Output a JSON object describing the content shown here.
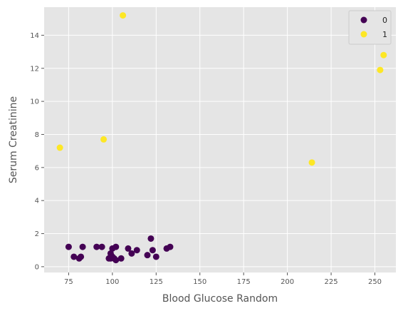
{
  "chart_data": {
    "type": "scatter",
    "title": "",
    "xlabel": "Blood Glucose Random",
    "ylabel": "Serum Creatinine",
    "xlim": [
      61,
      262
    ],
    "ylim": [
      -0.35,
      15.7
    ],
    "xticks": [
      75,
      100,
      125,
      150,
      175,
      200,
      225,
      250
    ],
    "yticks": [
      0,
      2,
      4,
      6,
      8,
      10,
      12,
      14
    ],
    "grid": true,
    "legend_position": "top-right",
    "series": [
      {
        "name": "0",
        "color": "#440154",
        "points": [
          [
            75,
            1.2
          ],
          [
            78,
            0.6
          ],
          [
            81,
            0.5
          ],
          [
            82,
            0.6
          ],
          [
            83,
            1.2
          ],
          [
            91,
            1.2
          ],
          [
            94,
            1.2
          ],
          [
            98,
            0.5
          ],
          [
            99,
            0.8
          ],
          [
            99,
            0.5
          ],
          [
            100,
            0.6
          ],
          [
            100,
            1.1
          ],
          [
            101,
            0.5
          ],
          [
            102,
            1.2
          ],
          [
            102,
            0.4
          ],
          [
            105,
            0.5
          ],
          [
            109,
            1.1
          ],
          [
            111,
            0.8
          ],
          [
            114,
            1.0
          ],
          [
            120,
            0.7
          ],
          [
            122,
            1.7
          ],
          [
            123,
            1.0
          ],
          [
            125,
            0.6
          ],
          [
            131,
            1.1
          ],
          [
            133,
            1.2
          ]
        ]
      },
      {
        "name": "1",
        "color": "#fde725",
        "points": [
          [
            70,
            7.2
          ],
          [
            95,
            7.7
          ],
          [
            106,
            15.2
          ],
          [
            214,
            6.3
          ],
          [
            253,
            11.9
          ],
          [
            255,
            12.8
          ]
        ]
      }
    ]
  }
}
